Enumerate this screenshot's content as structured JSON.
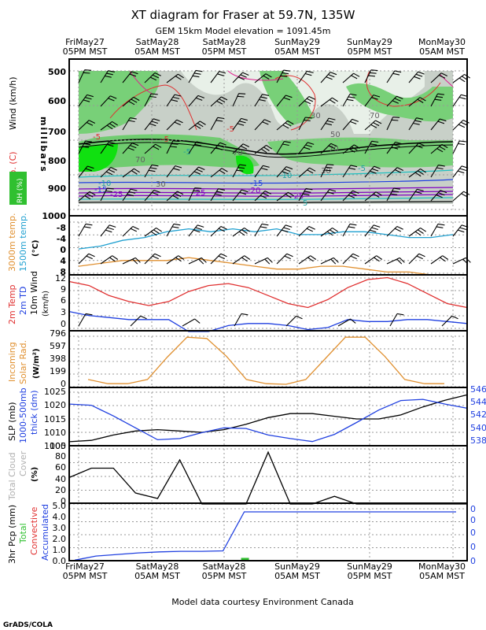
{
  "header": {
    "title": "XT diagram for Fraser at 59.7N, 135W",
    "subtitle": "GEM 15km Model elevation = 1091.45m"
  },
  "time_axis": {
    "labels_top": [
      {
        "day": "FriMay27",
        "time": "05PM MST"
      },
      {
        "day": "SatMay28",
        "time": "05AM MST"
      },
      {
        "day": "SatMay28",
        "time": "05PM MST"
      },
      {
        "day": "SunMay29",
        "time": "05AM MST"
      },
      {
        "day": "SunMay29",
        "time": "05PM MST"
      },
      {
        "day": "MonMay30",
        "time": "05AM MST"
      }
    ]
  },
  "footer": {
    "credit": "Model data courtesy Environment Canada",
    "logo": "GrADS/COLA"
  },
  "colors": {
    "red": "#e03030",
    "blue": "#2040e0",
    "orange": "#e09030",
    "cyan": "#20a0d0",
    "green": "#30c030",
    "gray": "#b0b0b0",
    "purple": "#8000c0",
    "black": "#000000",
    "magenta": "#e02090"
  },
  "chart_data": [
    {
      "type": "heatmap",
      "title": "XT diagram for Fraser at 59.7N, 135W",
      "ylabel_parts": [
        "Temp. (C)",
        "Wind (km/h)"
      ],
      "ylabel_right": "millibars",
      "rh_label": "RH (%)",
      "yticks": [
        "500",
        "600",
        "700",
        "800",
        "900",
        "1000"
      ],
      "ylim": [
        1000,
        480
      ],
      "contour_labels": [
        "-5",
        "-5",
        "-5",
        "-5",
        "-5",
        "-10",
        "-10",
        "-15",
        "-15",
        "-20",
        "-25",
        "-25",
        "-25",
        "5",
        "70",
        "70",
        "70",
        "70",
        "30",
        "30",
        "30",
        "50"
      ]
    },
    {
      "type": "line",
      "ylabel": [
        "3000m temp.",
        "1500m temp."
      ],
      "unit": "(°C)",
      "yticks": [
        "-8",
        "-4",
        "0",
        "4",
        "8"
      ],
      "ylim": [
        8,
        -12
      ],
      "series": [
        {
          "name": "1500m temp.",
          "color": "#20a0d0",
          "values": [
            -1,
            -2,
            -4,
            -5,
            -7,
            -8,
            -7,
            -8,
            -7,
            -8,
            -6,
            -6,
            -7,
            -7,
            -6,
            -5,
            -5,
            -6
          ]
        },
        {
          "name": "3000m temp.",
          "color": "#e09030",
          "values": [
            5,
            4,
            3,
            3,
            3,
            2,
            3,
            4,
            5,
            6,
            6,
            5,
            5,
            6,
            7,
            7,
            8,
            8
          ]
        }
      ]
    },
    {
      "type": "line",
      "ylabel": [
        "2m Temp",
        "2m TD",
        "10m Wind"
      ],
      "unit": "(km/h)",
      "yticks": [
        "0",
        "3",
        "6",
        "9",
        "12"
      ],
      "ylim": [
        -1,
        12
      ],
      "series": [
        {
          "name": "2m Temp",
          "color": "#e03030",
          "values": [
            11.5,
            10.5,
            8.0,
            6.5,
            5.5,
            6.5,
            9.0,
            10.5,
            11.0,
            10.0,
            8.0,
            6.0,
            5.0,
            7.0,
            10.0,
            12.0,
            12.5,
            11.0,
            8.5,
            6.0,
            5.0
          ]
        },
        {
          "name": "2m TD",
          "color": "#2040e0",
          "values": [
            4.0,
            3.0,
            2.5,
            2.0,
            2.0,
            2.0,
            -1.0,
            -1.0,
            0.5,
            1.0,
            1.0,
            0.5,
            -0.5,
            0.0,
            2.0,
            1.5,
            1.5,
            2.0,
            2.0,
            1.5,
            1.0
          ]
        }
      ]
    },
    {
      "type": "line",
      "ylabel": [
        "Incoming",
        "Solar Rad."
      ],
      "unit": "(W/m²)",
      "yticks": [
        "0",
        "199",
        "398",
        "597",
        "796"
      ],
      "ylim": [
        0,
        796
      ],
      "series": [
        {
          "name": "Incoming Solar Rad.",
          "color": "#e09030",
          "values": [
            80,
            10,
            10,
            80,
            450,
            780,
            760,
            460,
            80,
            10,
            0,
            80,
            430,
            780,
            780,
            460,
            80,
            10,
            10
          ]
        }
      ]
    },
    {
      "type": "line",
      "ylabel": [
        "SLP (mb)",
        "1000-500mb",
        "thick (dm)"
      ],
      "yticks": [
        "1005",
        "1010",
        "1015",
        "1020",
        "1025"
      ],
      "ylim": [
        1005,
        1025
      ],
      "yticks_right": [
        "538",
        "540",
        "542",
        "544",
        "546"
      ],
      "ylim_right": [
        537,
        546
      ],
      "series": [
        {
          "name": "SLP (mb)",
          "color": "#000000",
          "values": [
            1006.5,
            1007,
            1009,
            1010.5,
            1011,
            1010.5,
            1010,
            1011,
            1013,
            1015.5,
            1017,
            1017,
            1016,
            1015,
            1015,
            1016.5,
            1019.5,
            1022,
            1024
          ]
        },
        {
          "name": "1000-500mb thick (dm)",
          "color": "#2040e0",
          "values": [
            544.0,
            543.8,
            542.0,
            540.0,
            538.0,
            538.2,
            539.2,
            540.0,
            539.9,
            538.8,
            538.2,
            537.7,
            538.9,
            540.9,
            543.0,
            544.6,
            544.8,
            544.0,
            543.3
          ]
        }
      ]
    },
    {
      "type": "line",
      "ylabel": [
        "Total Cloud",
        "Cover"
      ],
      "unit": "(%)",
      "yticks": [
        "0",
        "20",
        "40",
        "60",
        "80",
        "100"
      ],
      "ylim": [
        0,
        100
      ],
      "series": [
        {
          "name": "Total Cloud Cover",
          "color": "#000000",
          "values": [
            48,
            65,
            65,
            20,
            10,
            80,
            0,
            0,
            0,
            94,
            0,
            0,
            14,
            0,
            0,
            0,
            0,
            0,
            0
          ]
        }
      ]
    },
    {
      "type": "line",
      "ylabel": [
        "3hr Pcp (mm)",
        "Total",
        "Convective",
        "Accumulated"
      ],
      "yticks": [
        "0.0",
        "1.0",
        "2.0",
        "3.0",
        "4.0",
        "5.0"
      ],
      "ylim": [
        0,
        5
      ],
      "yticks_right": [
        "0",
        "0",
        "0",
        "0",
        "0"
      ],
      "series": [
        {
          "name": "Accumulated",
          "color": "#2040e0",
          "values": [
            0.05,
            0.45,
            0.6,
            0.75,
            0.85,
            0.9,
            0.9,
            0.95,
            4.7,
            4.7,
            4.7,
            4.7,
            4.7,
            4.7,
            4.7,
            4.7,
            4.7,
            4.7,
            4.7
          ]
        },
        {
          "name": "Total",
          "color": "#30c030",
          "bar_at_index": 8,
          "bar_value": 0.12
        }
      ]
    }
  ]
}
